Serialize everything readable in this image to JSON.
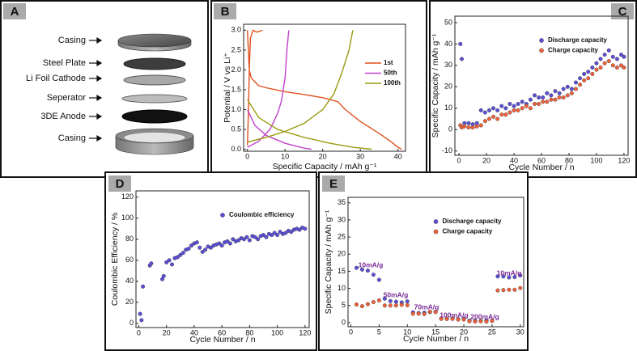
{
  "diagram": {
    "label": "A",
    "layers": [
      "Casing",
      "Steel Plate",
      "Li Foil Cathode",
      "Seperator",
      "3DE Anode",
      "Casing"
    ]
  },
  "chart_data": [
    {
      "label": "B",
      "type": "line",
      "xlabel": "Specific Capacity / mAh g⁻¹",
      "ylabel": "Potential / V vs Li⁺",
      "xlim": [
        -1,
        42
      ],
      "ylim": [
        -0.05,
        3.15
      ],
      "xticks": [
        0,
        10,
        20,
        30,
        40
      ],
      "yticks": [
        {
          "value": 0,
          "label": "0.0"
        },
        0.5,
        {
          "value": 1,
          "label": "1.0"
        },
        1.5,
        {
          "value": 2,
          "label": "2.0"
        },
        2.5,
        {
          "value": 3,
          "label": "3.0"
        }
      ],
      "legend": "upper right",
      "series": [
        {
          "name": "1st",
          "color": "#e0501e",
          "x": [
            0,
            0.5,
            1,
            3,
            5,
            10,
            15,
            20,
            24,
            26,
            30,
            35,
            38,
            40,
            41,
            null,
            0,
            0.3,
            0.5,
            0.8,
            1.5,
            2.5,
            4
          ],
          "values": [
            3.0,
            2.0,
            1.8,
            1.6,
            1.55,
            1.45,
            1.38,
            1.3,
            1.2,
            1.0,
            0.7,
            0.4,
            0.2,
            0.05,
            0,
            null,
            0.1,
            1,
            2,
            2.8,
            3.0,
            2.95,
            3.0
          ]
        },
        {
          "name": "50th",
          "color": "#c040c8",
          "x": [
            0,
            2,
            5,
            10,
            15,
            17,
            null,
            0,
            3,
            6,
            8,
            9,
            10,
            10.5,
            11
          ],
          "values": [
            1.0,
            0.6,
            0.35,
            0.15,
            0.03,
            0,
            null,
            0.05,
            0.2,
            0.5,
            0.9,
            1.2,
            1.8,
            2.5,
            3.0
          ]
        },
        {
          "name": "100th",
          "color": "#9a9a12",
          "x": [
            0,
            3,
            8,
            15,
            22,
            28,
            33,
            null,
            0,
            5,
            10,
            15,
            20,
            23,
            25,
            27,
            28
          ],
          "values": [
            1.25,
            0.8,
            0.5,
            0.3,
            0.15,
            0.05,
            0,
            null,
            0.18,
            0.3,
            0.45,
            0.65,
            1.0,
            1.4,
            1.9,
            2.5,
            3.0
          ]
        }
      ]
    },
    {
      "label": "C",
      "type": "scatter",
      "xlabel": "Cycle Number / n",
      "ylabel": "Specific Capacity / mAh g⁻¹",
      "xlim": [
        -3,
        123
      ],
      "ylim": [
        -12,
        53
      ],
      "xticks": [
        0,
        20,
        40,
        60,
        80,
        100,
        120
      ],
      "yticks": [
        -10,
        0,
        10,
        20,
        30,
        40,
        50
      ],
      "legend": "upper center",
      "x": [
        1,
        2,
        4,
        7,
        10,
        13,
        16,
        19,
        22,
        25,
        28,
        31,
        34,
        37,
        40,
        43,
        46,
        49,
        52,
        55,
        58,
        61,
        64,
        67,
        70,
        73,
        76,
        79,
        82,
        85,
        88,
        91,
        94,
        97,
        100,
        103,
        106,
        109,
        112,
        115,
        118,
        120
      ],
      "series": [
        {
          "name": "Discharge capacity",
          "color": "#5b4fd6",
          "values": [
            40,
            33,
            3,
            3,
            2.5,
            3,
            9,
            8,
            9,
            10,
            9,
            11,
            10,
            12,
            11,
            12,
            13,
            12,
            14,
            16,
            15,
            15,
            17,
            16,
            18,
            17,
            19,
            20,
            19,
            22,
            24,
            26,
            27,
            29,
            31,
            33,
            35,
            37,
            34,
            33,
            35,
            34
          ]
        },
        {
          "name": "Charge capacity",
          "color": "#f2603a",
          "values": [
            2,
            1,
            1.5,
            1,
            1,
            1.5,
            2,
            4,
            5,
            6,
            5,
            7,
            7,
            8,
            9,
            9,
            10,
            11,
            10,
            12,
            12,
            13,
            13,
            14,
            14,
            15,
            15,
            16,
            17,
            19,
            21,
            23,
            24,
            26,
            28,
            29,
            31,
            32,
            30,
            29,
            30,
            29
          ]
        }
      ]
    },
    {
      "label": "D",
      "type": "scatter",
      "xlabel": "Cycle Number / n",
      "ylabel": "Coulombic Efficiency / %",
      "xlim": [
        -2,
        123
      ],
      "ylim": [
        -4,
        126
      ],
      "xticks": [
        0,
        20,
        40,
        60,
        80,
        100,
        120
      ],
      "yticks": [
        0,
        20,
        40,
        60,
        80,
        100,
        120
      ],
      "legend": "upper center",
      "x": [
        1,
        2,
        3,
        8,
        9,
        17,
        18,
        20,
        22,
        24,
        26,
        28,
        30,
        32,
        34,
        36,
        38,
        40,
        42,
        44,
        46,
        48,
        50,
        52,
        54,
        56,
        58,
        60,
        62,
        64,
        66,
        68,
        70,
        72,
        74,
        76,
        78,
        80,
        82,
        84,
        86,
        88,
        90,
        92,
        94,
        96,
        98,
        100,
        102,
        104,
        106,
        108,
        110,
        112,
        114,
        116,
        118,
        120
      ],
      "series": [
        {
          "name": "Coulombic efficiency",
          "color": "#5b4fd6",
          "values": [
            9,
            3,
            35,
            55,
            57,
            42,
            45,
            58,
            60,
            56,
            62,
            63,
            65,
            67,
            70,
            71,
            74,
            76,
            77,
            72,
            68,
            70,
            73,
            72,
            74,
            75,
            76,
            74,
            77,
            78,
            76,
            80,
            78,
            79,
            81,
            80,
            82,
            79,
            83,
            82,
            80,
            83,
            84,
            82,
            85,
            84,
            86,
            84,
            87,
            85,
            86,
            88,
            87,
            89,
            90,
            89,
            91,
            90
          ]
        }
      ]
    },
    {
      "label": "E",
      "type": "scatter",
      "xlabel": "Cycle Number / n",
      "ylabel": "Specific Capacity / mAh g⁻¹",
      "xlim": [
        -0.5,
        30.6
      ],
      "ylim": [
        -1.2,
        36.6
      ],
      "xticks": [
        0,
        5,
        10,
        15,
        20,
        25,
        30
      ],
      "yticks": [
        0,
        5,
        10,
        15,
        20,
        25,
        30,
        35
      ],
      "legend": "upper center",
      "annotations": [
        "10mA/g",
        "50mA/g",
        "70mA/g",
        "100mA/g",
        "200mA/g",
        "10mA/g"
      ],
      "x": [
        1,
        2,
        3,
        4,
        5,
        6,
        7,
        8,
        9,
        10,
        11,
        12,
        13,
        14,
        15,
        16,
        17,
        18,
        19,
        20,
        21,
        22,
        23,
        24,
        25,
        26,
        27,
        28,
        29,
        30
      ],
      "series": [
        {
          "name": "Discharge capacity",
          "color": "#5b4fd6",
          "values": [
            16,
            15.5,
            15.2,
            14,
            12.5,
            7,
            6.3,
            6.1,
            5.9,
            6.2,
            3,
            2.8,
            2.9,
            3.1,
            3.2,
            1.2,
            1.1,
            1.2,
            1.0,
            1.1,
            0.6,
            0.5,
            0.5,
            0.6,
            0.6,
            13.5,
            13.5,
            13.2,
            13.3,
            13.8
          ]
        },
        {
          "name": "Charge capacity",
          "color": "#f2603a",
          "values": [
            5.3,
            4.8,
            5.4,
            6.0,
            6.5,
            5,
            5,
            5,
            5.2,
            5.1,
            2.6,
            2.6,
            2.5,
            3.2,
            3.1,
            1.1,
            1.1,
            1.1,
            0.9,
            0.9,
            0.4,
            0.3,
            0.4,
            0.3,
            0.5,
            9.4,
            9.5,
            9.6,
            9.6,
            10.1
          ]
        }
      ]
    }
  ]
}
